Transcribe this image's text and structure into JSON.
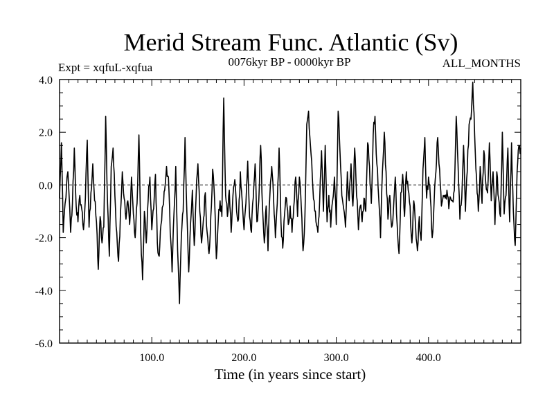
{
  "chart_data": {
    "type": "line",
    "title": "Merid Stream Func. Atlantic (Sv)",
    "subtitle_left": "Expt = xqfuL-xqfua",
    "subtitle_center": "0076kyr BP - 0000kyr BP",
    "subtitle_right": "ALL_MONTHS",
    "xlabel": "Time (in years since start)",
    "ylabel": "",
    "xlim": [
      0,
      500
    ],
    "ylim": [
      -6.0,
      4.0
    ],
    "xticks": [
      100,
      200,
      300,
      400
    ],
    "xtick_labels": [
      "100.0",
      "200.0",
      "300.0",
      "400.0"
    ],
    "yticks": [
      4,
      2,
      0,
      -2,
      -4,
      -6
    ],
    "ytick_labels": [
      "4.0",
      "2.0",
      "0.0",
      "-2.0",
      "-4.0",
      "-6.0"
    ],
    "zero_line": 0,
    "series": [
      {
        "name": "xqfuL-xqfua",
        "anchors": [
          [
            0,
            -0.5
          ],
          [
            2,
            1.6
          ],
          [
            4,
            -1.8
          ],
          [
            6,
            -0.7
          ],
          [
            9,
            0.5
          ],
          [
            12,
            -1.8
          ],
          [
            14,
            -0.7
          ],
          [
            16,
            1.4
          ],
          [
            18,
            -0.8
          ],
          [
            20,
            -1.4
          ],
          [
            22,
            -0.4
          ],
          [
            24,
            -0.9
          ],
          [
            26,
            -1.7
          ],
          [
            28,
            -0.5
          ],
          [
            30,
            1.7
          ],
          [
            32,
            -1.6
          ],
          [
            34,
            -0.3
          ],
          [
            36,
            0.8
          ],
          [
            38,
            -0.6
          ],
          [
            40,
            -1.4
          ],
          [
            42,
            -3.2
          ],
          [
            44,
            -1.2
          ],
          [
            46,
            -2.2
          ],
          [
            48,
            -1.6
          ],
          [
            50,
            2.6
          ],
          [
            52,
            -0.7
          ],
          [
            54,
            -2.7
          ],
          [
            56,
            0.7
          ],
          [
            58,
            1.4
          ],
          [
            60,
            -0.4
          ],
          [
            62,
            -1.8
          ],
          [
            64,
            -2.9
          ],
          [
            66,
            -1.1
          ],
          [
            68,
            0.5
          ],
          [
            70,
            -0.5
          ],
          [
            72,
            -1.3
          ],
          [
            74,
            -0.6
          ],
          [
            76,
            -1.5
          ],
          [
            78,
            0.3
          ],
          [
            80,
            -1.1
          ],
          [
            82,
            -2.0
          ],
          [
            84,
            -0.7
          ],
          [
            86,
            1.9
          ],
          [
            88,
            -1.8
          ],
          [
            90,
            -3.6
          ],
          [
            92,
            -1.0
          ],
          [
            94,
            -2.2
          ],
          [
            96,
            -0.6
          ],
          [
            98,
            0.3
          ],
          [
            100,
            -1.7
          ],
          [
            102,
            -0.9
          ],
          [
            104,
            0.4
          ],
          [
            106,
            -2.2
          ],
          [
            108,
            -2.7
          ],
          [
            110,
            -1.5
          ],
          [
            112,
            -0.8
          ],
          [
            114,
            -0.2
          ],
          [
            116,
            0.7
          ],
          [
            118,
            0.3
          ],
          [
            120,
            -1.8
          ],
          [
            122,
            -3.3
          ],
          [
            124,
            -1.1
          ],
          [
            126,
            0.7
          ],
          [
            128,
            -2.5
          ],
          [
            130,
            -4.5
          ],
          [
            132,
            -2.0
          ],
          [
            134,
            -1.0
          ],
          [
            136,
            1.8
          ],
          [
            138,
            -1.0
          ],
          [
            140,
            -3.3
          ],
          [
            142,
            -1.5
          ],
          [
            144,
            -0.2
          ],
          [
            146,
            -2.3
          ],
          [
            148,
            -0.5
          ],
          [
            150,
            0.8
          ],
          [
            152,
            -1.0
          ],
          [
            154,
            -2.2
          ],
          [
            156,
            -1.3
          ],
          [
            158,
            -0.3
          ],
          [
            160,
            -1.8
          ],
          [
            162,
            -2.6
          ],
          [
            164,
            -1.2
          ],
          [
            166,
            0.6
          ],
          [
            168,
            -0.5
          ],
          [
            170,
            -2.8
          ],
          [
            172,
            -1.4
          ],
          [
            174,
            -0.6
          ],
          [
            176,
            -1.2
          ],
          [
            178,
            3.3
          ],
          [
            180,
            -0.4
          ],
          [
            182,
            -1.2
          ],
          [
            184,
            -0.2
          ],
          [
            186,
            -1.8
          ],
          [
            188,
            -0.4
          ],
          [
            190,
            0.2
          ],
          [
            192,
            -1.0
          ],
          [
            194,
            -1.3
          ],
          [
            196,
            0.5
          ],
          [
            198,
            -0.6
          ],
          [
            200,
            -1.7
          ],
          [
            202,
            -0.7
          ],
          [
            204,
            0.9
          ],
          [
            206,
            -1.2
          ],
          [
            208,
            -1.8
          ],
          [
            210,
            -0.5
          ],
          [
            212,
            0.8
          ],
          [
            214,
            -1.4
          ],
          [
            216,
            -0.6
          ],
          [
            218,
            1.5
          ],
          [
            220,
            -0.8
          ],
          [
            222,
            -2.2
          ],
          [
            224,
            -0.8
          ],
          [
            226,
            -2.5
          ],
          [
            228,
            -0.4
          ],
          [
            230,
            0.7
          ],
          [
            232,
            -0.5
          ],
          [
            234,
            -2.0
          ],
          [
            236,
            -0.7
          ],
          [
            238,
            1.4
          ],
          [
            240,
            -1.4
          ],
          [
            242,
            -2.4
          ],
          [
            244,
            -1.1
          ],
          [
            246,
            -0.5
          ],
          [
            248,
            -1.5
          ],
          [
            250,
            -0.8
          ],
          [
            252,
            -1.8
          ],
          [
            254,
            -0.8
          ],
          [
            256,
            0.3
          ],
          [
            258,
            -1.2
          ],
          [
            260,
            0.3
          ],
          [
            262,
            -0.8
          ],
          [
            264,
            -2.5
          ],
          [
            266,
            -1.2
          ],
          [
            268,
            2.3
          ],
          [
            270,
            2.8
          ],
          [
            272,
            1.5
          ],
          [
            274,
            0.3
          ],
          [
            276,
            -0.6
          ],
          [
            278,
            -1.4
          ],
          [
            280,
            -1.8
          ],
          [
            282,
            -0.6
          ],
          [
            284,
            1.3
          ],
          [
            286,
            -1.0
          ],
          [
            288,
            1.5
          ],
          [
            290,
            -1.4
          ],
          [
            292,
            -0.4
          ],
          [
            294,
            -1.6
          ],
          [
            296,
            -0.6
          ],
          [
            298,
            0.3
          ],
          [
            300,
            -1.5
          ],
          [
            302,
            2.8
          ],
          [
            304,
            1.3
          ],
          [
            306,
            -0.4
          ],
          [
            308,
            -0.9
          ],
          [
            310,
            -1.6
          ],
          [
            312,
            0.5
          ],
          [
            314,
            -0.6
          ],
          [
            316,
            0.8
          ],
          [
            318,
            -0.8
          ],
          [
            320,
            1.4
          ],
          [
            322,
            -0.4
          ],
          [
            324,
            -1.7
          ],
          [
            326,
            -0.8
          ],
          [
            328,
            -1.4
          ],
          [
            330,
            -0.5
          ],
          [
            332,
            -1.0
          ],
          [
            334,
            1.6
          ],
          [
            336,
            0.7
          ],
          [
            338,
            -0.7
          ],
          [
            340,
            1.9
          ],
          [
            342,
            2.6
          ],
          [
            344,
            0.8
          ],
          [
            346,
            -0.5
          ],
          [
            348,
            -2.0
          ],
          [
            350,
            0.5
          ],
          [
            352,
            2.0
          ],
          [
            354,
            0.5
          ],
          [
            356,
            -1.3
          ],
          [
            358,
            -0.4
          ],
          [
            360,
            -1.6
          ],
          [
            362,
            -0.9
          ],
          [
            364,
            0.3
          ],
          [
            366,
            -1.5
          ],
          [
            368,
            -2.6
          ],
          [
            370,
            -0.3
          ],
          [
            372,
            0.4
          ],
          [
            374,
            -1.2
          ],
          [
            376,
            0.5
          ],
          [
            378,
            -0.2
          ],
          [
            380,
            -0.8
          ],
          [
            382,
            -2.2
          ],
          [
            384,
            -0.6
          ],
          [
            386,
            -1.6
          ],
          [
            388,
            -2.5
          ],
          [
            390,
            -1.2
          ],
          [
            392,
            -2.1
          ],
          [
            394,
            0.6
          ],
          [
            396,
            1.8
          ],
          [
            398,
            -0.5
          ],
          [
            400,
            0.3
          ],
          [
            402,
            -0.5
          ],
          [
            404,
            -2.0
          ],
          [
            406,
            -0.7
          ],
          [
            408,
            0.5
          ],
          [
            410,
            1.8
          ],
          [
            412,
            0.6
          ],
          [
            414,
            -0.8
          ],
          [
            416,
            -0.4
          ],
          [
            418,
            -0.5
          ],
          [
            420,
            -0.2
          ],
          [
            422,
            -0.9
          ],
          [
            424,
            -0.5
          ],
          [
            426,
            -0.6
          ],
          [
            428,
            -0.2
          ],
          [
            430,
            2.6
          ],
          [
            432,
            0.8
          ],
          [
            434,
            -1.3
          ],
          [
            436,
            -0.5
          ],
          [
            438,
            1.5
          ],
          [
            440,
            -1.0
          ],
          [
            442,
            0.5
          ],
          [
            444,
            2.3
          ],
          [
            446,
            2.5
          ],
          [
            448,
            3.9
          ],
          [
            450,
            1.9
          ],
          [
            452,
            0.3
          ],
          [
            454,
            -1.0
          ],
          [
            456,
            0.7
          ],
          [
            458,
            -0.7
          ],
          [
            460,
            1.3
          ],
          [
            462,
            0.1
          ],
          [
            464,
            -0.3
          ],
          [
            466,
            1.6
          ],
          [
            468,
            -0.6
          ],
          [
            470,
            0.5
          ],
          [
            472,
            -1.5
          ],
          [
            474,
            0.5
          ],
          [
            476,
            -0.5
          ],
          [
            478,
            -1.2
          ],
          [
            480,
            2.0
          ],
          [
            482,
            -1.1
          ],
          [
            484,
            -0.4
          ],
          [
            486,
            1.4
          ],
          [
            488,
            -1.4
          ],
          [
            490,
            1.6
          ],
          [
            492,
            -1.0
          ],
          [
            494,
            -2.3
          ],
          [
            496,
            0.5
          ],
          [
            498,
            1.5
          ],
          [
            500,
            1.4
          ]
        ]
      }
    ]
  }
}
